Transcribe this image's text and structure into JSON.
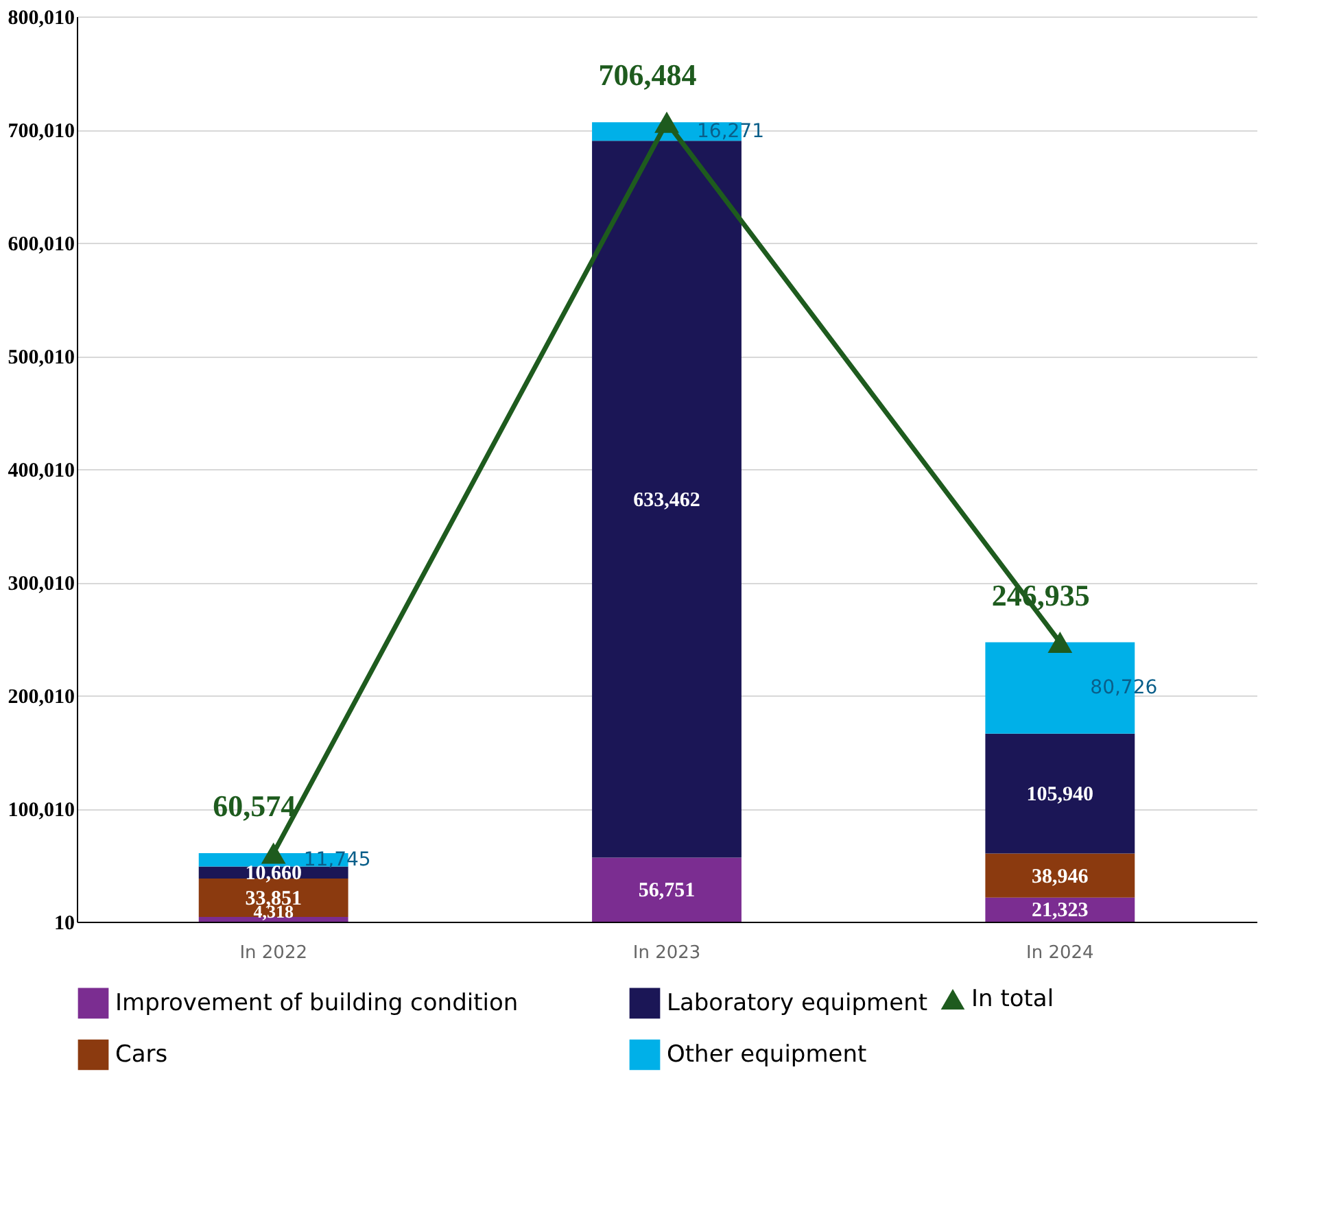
{
  "chart_data": {
    "type": "bar",
    "stacked": true,
    "categories": [
      "In 2022",
      "In 2023",
      "In 2024"
    ],
    "series": [
      {
        "name": "Improvement of building condition",
        "color": "#7b2d91",
        "values": [
          4318,
          56751,
          21323
        ],
        "value_labels": [
          "4,318",
          "56,751",
          "21,323"
        ]
      },
      {
        "name": "Cars",
        "color": "#8b3a0f",
        "values": [
          33851,
          null,
          38946
        ],
        "value_labels": [
          "33,851",
          null,
          "38,946"
        ]
      },
      {
        "name": "Laboratory equipment",
        "color": "#1b1656",
        "values": [
          10660,
          633462,
          105940
        ],
        "value_labels": [
          "10,660",
          "633,462",
          "105,940"
        ]
      },
      {
        "name": "Other equipment",
        "color": "#00b0e8",
        "values": [
          11745,
          16271,
          80726
        ],
        "value_labels": [
          "11,745",
          "16,271",
          "80,726"
        ]
      },
      {
        "name": "In total",
        "type": "line",
        "color": "#1e5b1e",
        "values": [
          60574,
          706484,
          246935
        ],
        "value_labels": [
          "60,574",
          "706,484",
          "246,935"
        ]
      }
    ],
    "ylim": [
      10,
      800010
    ],
    "yticks": [
      {
        "value": 10,
        "label": "10"
      },
      {
        "value": 100010,
        "label": "100,010"
      },
      {
        "value": 200010,
        "label": "200,010"
      },
      {
        "value": 300010,
        "label": "300,010"
      },
      {
        "value": 400010,
        "label": "400,010"
      },
      {
        "value": 500010,
        "label": "500,010"
      },
      {
        "value": 600010,
        "label": "600,010"
      },
      {
        "value": 700010,
        "label": "700,010"
      },
      {
        "value": 800010,
        "label": "800,010"
      }
    ],
    "grid": "y",
    "legend": "bottom",
    "marker": "triangle",
    "data_labels": true
  }
}
